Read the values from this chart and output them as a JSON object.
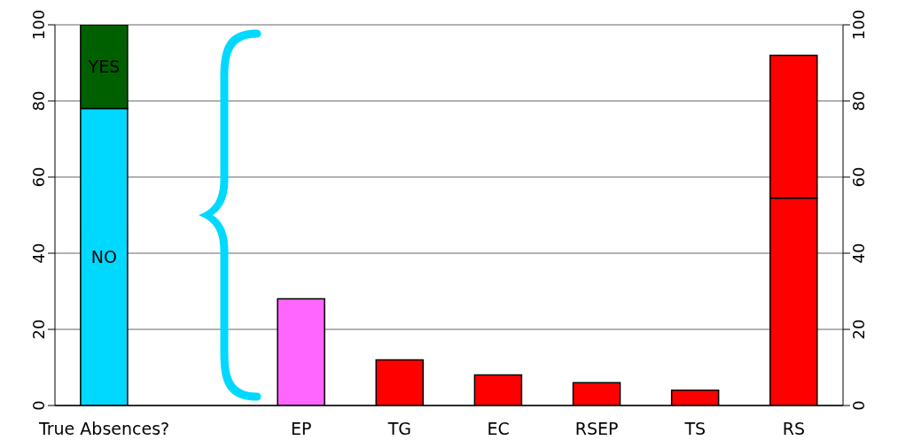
{
  "chart_data": {
    "type": "bar",
    "stacked": true,
    "categories": [
      "True Absences?",
      null,
      "EP",
      "TG",
      "EC",
      "RSEP",
      "TS",
      "RS"
    ],
    "series": [
      {
        "name": "NO",
        "color": "#00d9ff",
        "values": [
          78,
          null,
          null,
          null,
          null,
          null,
          null,
          null
        ]
      },
      {
        "name": "YES",
        "color": "#006000",
        "values": [
          22,
          null,
          null,
          null,
          null,
          null,
          null,
          null
        ]
      },
      {
        "colors": [
          "#ff0000",
          "#ff0000",
          "#ff66ff",
          "#ff0000",
          "#ff0000",
          "#ff0000",
          "#ff0000",
          "#ff0000"
        ],
        "values": [
          null,
          null,
          28,
          12,
          8,
          6,
          4,
          54.5
        ]
      },
      {
        "color": "#ff0000",
        "values": [
          null,
          null,
          null,
          null,
          null,
          null,
          null,
          37.5
        ]
      }
    ],
    "ylim": [
      0,
      100
    ],
    "yticks": [
      0,
      20,
      40,
      60,
      80,
      100
    ],
    "y2lim": [
      0,
      100
    ],
    "y2ticks": [
      0,
      20,
      40,
      60,
      80,
      100
    ],
    "grid": "y"
  }
}
